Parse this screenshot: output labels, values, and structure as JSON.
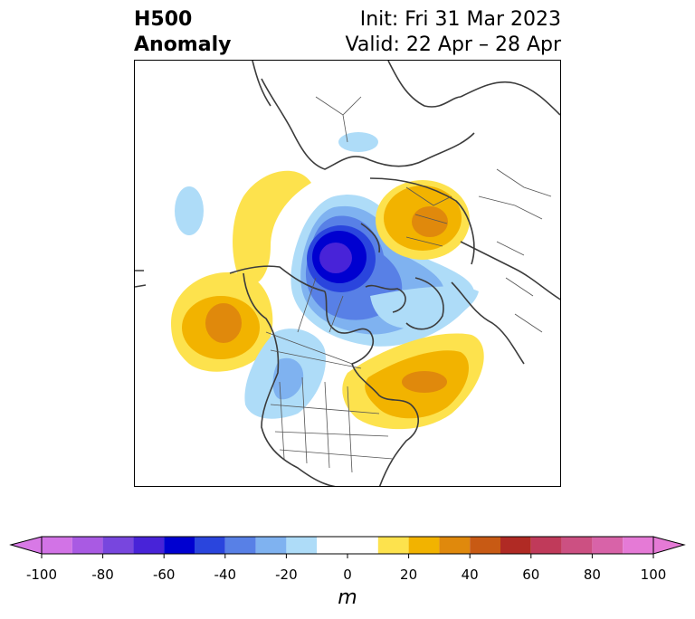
{
  "title": {
    "left_line1": "H500",
    "left_line2": "Anomaly",
    "right_line1": "Init: Fri 31 Mar 2023",
    "right_line2": "Valid: 22 Apr – 28 Apr"
  },
  "colorbar": {
    "tick_labels": [
      "-100",
      "-80",
      "-60",
      "-40",
      "-20",
      "0",
      "20",
      "40",
      "60",
      "80",
      "100"
    ],
    "bin_edges": [
      -100,
      -90,
      -80,
      -70,
      -60,
      -50,
      -40,
      -30,
      -20,
      -10,
      10,
      20,
      30,
      40,
      50,
      60,
      70,
      80,
      90,
      100
    ],
    "extend": "both",
    "under_color": "#d879e6",
    "over_color": "#e57ad6",
    "colors": [
      "#d273e6",
      "#a95ae3",
      "#7846de",
      "#4823d8",
      "#0000d0",
      "#2a45dd",
      "#5880e6",
      "#7fb2f0",
      "#aedcf8",
      "#ffffff",
      "#fde24d",
      "#f2b300",
      "#e0890c",
      "#c85a14",
      "#b02a24",
      "#c03a5a",
      "#cc5082",
      "#d863a8",
      "#e57ad6"
    ],
    "units": "m"
  },
  "map": {
    "projection": "north polar stereographic",
    "region": "North America / Arctic",
    "coastline_color": "#3c3c3c"
  }
}
